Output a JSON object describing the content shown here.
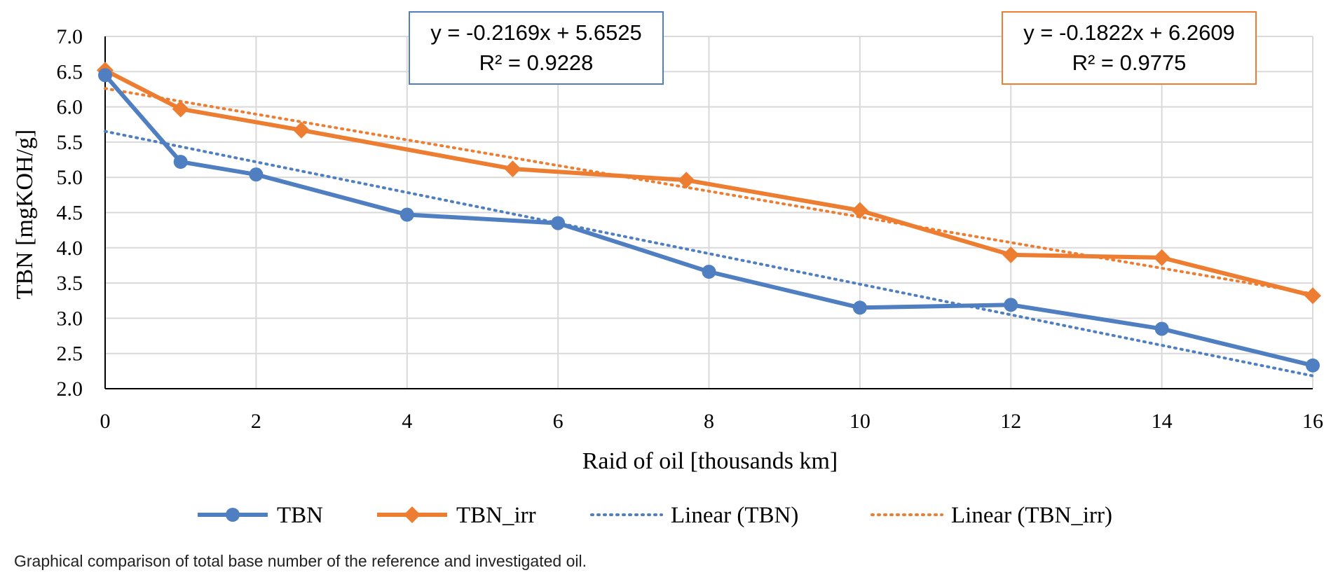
{
  "caption": "Graphical comparison of total base number of the reference and investigated oil.",
  "chart_data": {
    "type": "line",
    "xlabel": "Raid of oil [thousands km]",
    "ylabel": "TBN [mgKOH/g]",
    "xlim": [
      0,
      16
    ],
    "ylim": [
      2.0,
      7.0
    ],
    "x_ticks": [
      "0",
      "2",
      "4",
      "6",
      "8",
      "10",
      "12",
      "14",
      "16"
    ],
    "y_ticks": [
      "2.0",
      "2.5",
      "3.0",
      "3.5",
      "4.0",
      "4.5",
      "5.0",
      "5.5",
      "6.0",
      "6.5",
      "7.0"
    ],
    "grid": true,
    "legend_position": "bottom",
    "series": [
      {
        "name": "TBN",
        "color": "#4F7FC0",
        "marker": "circle",
        "x": [
          0,
          1,
          2,
          4,
          6,
          8,
          10,
          12,
          14,
          16
        ],
        "y": [
          6.45,
          5.22,
          5.04,
          4.47,
          4.35,
          3.66,
          3.15,
          3.19,
          2.85,
          2.33
        ]
      },
      {
        "name": "TBN_irr",
        "color": "#ED7D31",
        "marker": "diamond",
        "x": [
          0,
          1,
          2.6,
          5.4,
          7.7,
          10,
          12,
          14,
          16
        ],
        "y": [
          6.52,
          5.97,
          5.67,
          5.12,
          4.96,
          4.53,
          3.9,
          3.86,
          3.32
        ]
      }
    ],
    "trendlines": [
      {
        "name": "Linear (TBN)",
        "color": "#4F7FC0",
        "slope": -0.2169,
        "intercept": 5.6525,
        "equation": "y = -0.2169x + 5.6525",
        "r2": "R² = 0.9228"
      },
      {
        "name": "Linear (TBN_irr)",
        "color": "#ED7D31",
        "slope": -0.1822,
        "intercept": 6.2609,
        "equation": "y = -0.1822x + 6.2609",
        "r2": "R² = 0.9775"
      }
    ]
  }
}
